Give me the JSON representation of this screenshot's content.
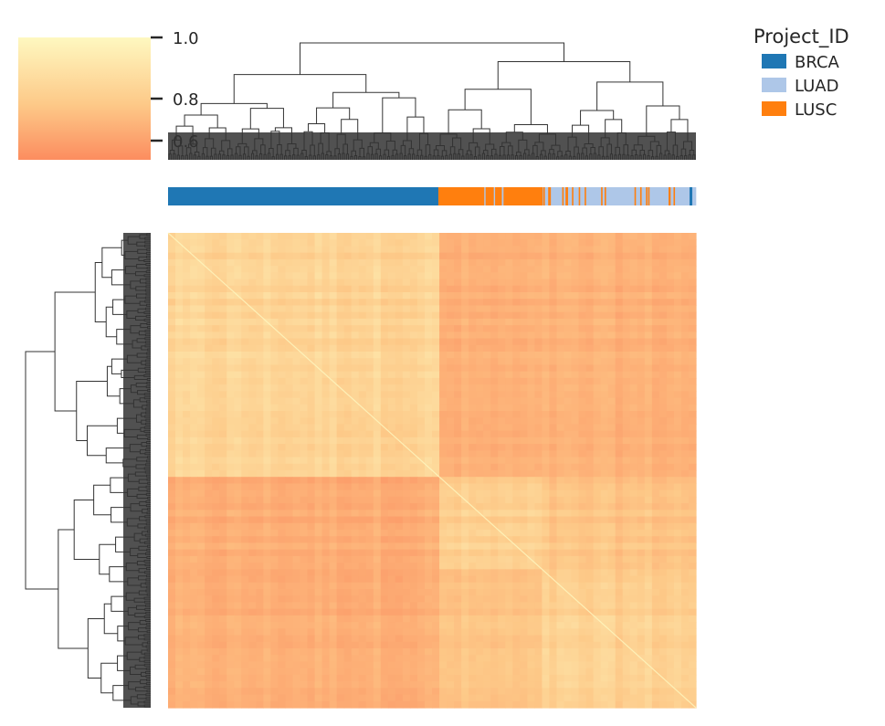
{
  "chart_data": {
    "type": "heatmap",
    "subtype": "clustermap",
    "title": "",
    "xlabel": "",
    "ylabel": "",
    "colormap": "YlOrRd-like (light yellow high, salmon low)",
    "colorbar": {
      "ticks": [
        "1.0",
        "0.8",
        "0.6"
      ],
      "tick_values": [
        1.0,
        0.8,
        0.6
      ],
      "range": [
        0.6,
        1.0
      ],
      "color_high": "#fef7bd",
      "color_low": "#fc8e5f"
    },
    "legend": {
      "title": "Project_ID",
      "placement": "top-right",
      "entries": [
        {
          "name": "BRCA",
          "color": "#1f77b4"
        },
        {
          "name": "LUAD",
          "color": "#aec7e8"
        },
        {
          "name": "LUSC",
          "color": "#ff7f0e"
        }
      ]
    },
    "column_annotation": {
      "segments": [
        {
          "project": "BRCA",
          "fraction": 0.512
        },
        {
          "project": "LUSC",
          "fraction": 0.198
        },
        {
          "project": "LUAD",
          "fraction": 0.29
        }
      ]
    },
    "blocks": [
      {
        "label": "BRCA",
        "fraction": 0.512
      },
      {
        "label": "LUSC",
        "fraction": 0.198
      },
      {
        "label": "LUAD",
        "fraction": 0.29
      }
    ],
    "block_correlation": [
      [
        0.86,
        0.72,
        0.73
      ],
      [
        0.72,
        0.84,
        0.8
      ],
      [
        0.73,
        0.8,
        0.85
      ]
    ],
    "diagonal_value": 1.0,
    "grid": false
  }
}
